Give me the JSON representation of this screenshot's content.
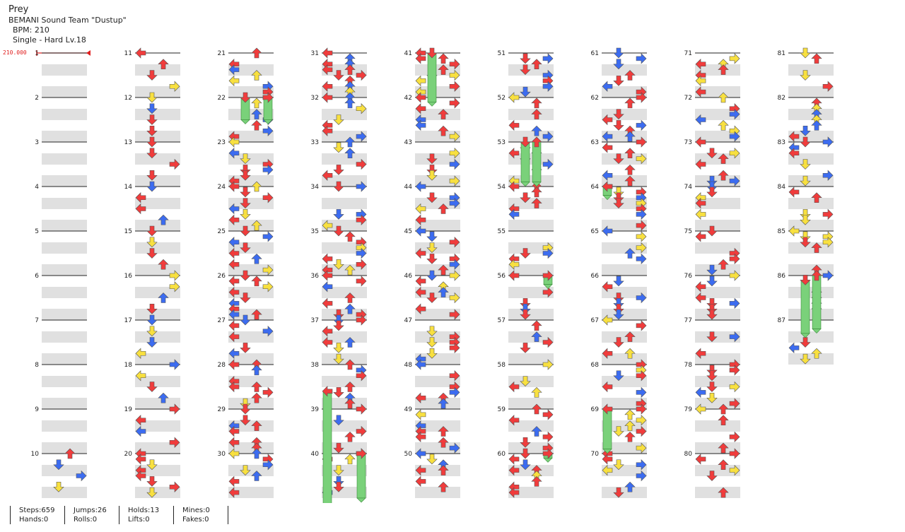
{
  "song": {
    "title": "Prey",
    "artist": "BEMANI Sound Team \"Dustup\"",
    "bpm": "BPM: 210",
    "difficulty": "Single - Hard  Lv.18"
  },
  "bpm_marker": "210.000",
  "colors": {
    "red": "#f03c3c",
    "blue": "#3c6cf0",
    "yellow": "#f8e040",
    "green": "#7ad17a",
    "stripe": "#e0e0e0",
    "measure_line": "#222222"
  },
  "columns": [
    {
      "measures": [
        1,
        2,
        3,
        4,
        5,
        6,
        7,
        8,
        9,
        10
      ]
    },
    {
      "measures": [
        11,
        12,
        13,
        14,
        15,
        16,
        17,
        18,
        19,
        20
      ]
    },
    {
      "measures": [
        21,
        22,
        23,
        24,
        25,
        26,
        27,
        28,
        29,
        30
      ]
    },
    {
      "measures": [
        31,
        32,
        33,
        34,
        35,
        36,
        37,
        38,
        39,
        40
      ]
    },
    {
      "measures": [
        41,
        42,
        43,
        44,
        45,
        46,
        47,
        48,
        49,
        50
      ]
    },
    {
      "measures": [
        51,
        52,
        53,
        54,
        55,
        56,
        57,
        58,
        59,
        60
      ]
    },
    {
      "measures": [
        61,
        62,
        63,
        64,
        65,
        66,
        67,
        68,
        69,
        70
      ]
    },
    {
      "measures": [
        71,
        72,
        73,
        74,
        75,
        76,
        77,
        78,
        79,
        80
      ]
    },
    {
      "measures": [
        81,
        82,
        83,
        84,
        85,
        86,
        87
      ]
    }
  ],
  "stats": [
    {
      "a": "Steps:659",
      "b": "Hands:0"
    },
    {
      "a": "Jumps:26",
      "b": "Rolls:0"
    },
    {
      "a": "Holds:13",
      "b": "Lifts:0"
    },
    {
      "a": "Mines:0",
      "b": "Fakes:0"
    }
  ]
}
